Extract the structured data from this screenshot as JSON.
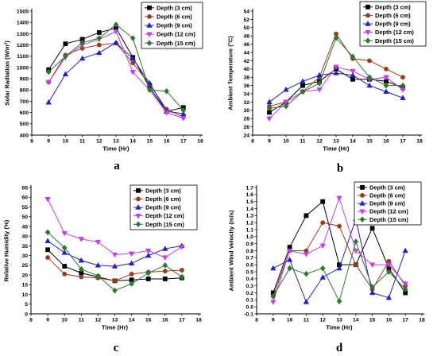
{
  "chart_data": [
    {
      "panel_label": "a",
      "type": "line",
      "xlabel": "Time (Hr)",
      "ylabel": "Solar Radiation (W/m²)",
      "xlim": [
        8,
        18
      ],
      "ylim": [
        400,
        1500
      ],
      "xticks": [
        "8",
        "9",
        "10",
        "11",
        "12",
        "13",
        "14",
        "15",
        "16",
        "17",
        "18"
      ],
      "yticks": [
        "400",
        "500",
        "600",
        "700",
        "800",
        "900",
        "1000",
        "1100",
        "1200",
        "1300",
        "1400",
        "1500"
      ],
      "grid": false,
      "legend": "top-right",
      "x": [
        9,
        10,
        11,
        12,
        13,
        14,
        15,
        16,
        17
      ],
      "series": [
        {
          "name": "Depth (3 cm)",
          "color": "#000000",
          "marker": "square",
          "values": [
            980,
            1210,
            1250,
            1310,
            1350,
            1090,
            820,
            610,
            645
          ]
        },
        {
          "name": "Depth (6 cm)",
          "color": "#9b3b1e",
          "marker": "circle",
          "values": [
            870,
            1110,
            1170,
            1200,
            1215,
            1040,
            850,
            630,
            560
          ]
        },
        {
          "name": "Depth (9 cm)",
          "color": "#1f1fcc",
          "marker": "triangle-up",
          "values": [
            690,
            940,
            1080,
            1130,
            1220,
            1080,
            860,
            610,
            590
          ]
        },
        {
          "name": "Depth (12 cm)",
          "color": "#c23cf2",
          "marker": "triangle-down",
          "values": [
            870,
            1090,
            1200,
            1250,
            1320,
            960,
            800,
            600,
            550
          ]
        },
        {
          "name": "Depth (15 cm)",
          "color": "#2b7a2b",
          "marker": "diamond",
          "values": [
            960,
            1100,
            1220,
            1260,
            1380,
            1260,
            800,
            790,
            620
          ]
        }
      ]
    },
    {
      "panel_label": "b",
      "type": "line",
      "xlabel": "Time (Hr)",
      "ylabel": "Ambient Temperature (°C)",
      "xlim": [
        8,
        18
      ],
      "ylim": [
        24,
        54
      ],
      "xticks": [
        "8",
        "9",
        "10",
        "11",
        "12",
        "13",
        "14",
        "15",
        "16",
        "17",
        "18"
      ],
      "yticks": [
        "24",
        "26",
        "28",
        "30",
        "32",
        "34",
        "36",
        "38",
        "40",
        "42",
        "44",
        "46",
        "48",
        "50",
        "52",
        "54"
      ],
      "grid": false,
      "legend": "top-right",
      "x": [
        9,
        10,
        11,
        12,
        13,
        14,
        15,
        16,
        17
      ],
      "series": [
        {
          "name": "Depth (3 cm)",
          "color": "#000000",
          "marker": "square",
          "values": [
            29.5,
            32,
            36,
            37,
            40,
            37.5,
            37.5,
            37,
            35.5
          ]
        },
        {
          "name": "Depth (6 cm)",
          "color": "#9b3b1e",
          "marker": "circle",
          "values": [
            31,
            32,
            34.5,
            38,
            48.5,
            42.5,
            42,
            40,
            38
          ]
        },
        {
          "name": "Depth (9 cm)",
          "color": "#1f1fcc",
          "marker": "triangle-up",
          "values": [
            32,
            35,
            37,
            38.5,
            39,
            38.5,
            36,
            34.5,
            33
          ]
        },
        {
          "name": "Depth (12 cm)",
          "color": "#c23cf2",
          "marker": "triangle-down",
          "values": [
            28,
            32,
            34.5,
            35,
            40.5,
            39.5,
            37.5,
            38,
            35
          ]
        },
        {
          "name": "Depth (15 cm)",
          "color": "#2b7a2b",
          "marker": "diamond",
          "values": [
            30.5,
            31,
            34.5,
            36.5,
            47.5,
            43,
            38,
            36,
            36
          ]
        }
      ]
    },
    {
      "panel_label": "c",
      "type": "line",
      "xlabel": "Time (Hr)",
      "ylabel": "Relative Humidity (%)",
      "xlim": [
        8,
        18
      ],
      "ylim": [
        0,
        65
      ],
      "xticks": [
        "8",
        "9",
        "10",
        "11",
        "12",
        "13",
        "14",
        "15",
        "16",
        "17",
        "18"
      ],
      "yticks": [
        "0",
        "5",
        "10",
        "15",
        "20",
        "25",
        "30",
        "35",
        "40",
        "45",
        "50",
        "55",
        "60",
        "65"
      ],
      "grid": false,
      "legend": "top-right",
      "x": [
        9,
        10,
        11,
        12,
        13,
        14,
        15,
        16,
        17
      ],
      "series": [
        {
          "name": "Depth (3 cm)",
          "color": "#000000",
          "marker": "square",
          "values": [
            33,
            24.5,
            21,
            19,
            17,
            17.5,
            18,
            18,
            18.5
          ]
        },
        {
          "name": "Depth (6 cm)",
          "color": "#9b3b1e",
          "marker": "circle",
          "values": [
            29,
            20.5,
            19,
            18.5,
            17,
            20.5,
            21.5,
            22,
            22.5
          ]
        },
        {
          "name": "Depth (9 cm)",
          "color": "#1f1fcc",
          "marker": "triangle-up",
          "values": [
            37.5,
            31.5,
            27.5,
            25,
            24.5,
            26,
            30,
            33.5,
            35
          ]
        },
        {
          "name": "Depth (12 cm)",
          "color": "#c23cf2",
          "marker": "triangle-down",
          "values": [
            59,
            41.5,
            38.5,
            37,
            30.5,
            31,
            32.5,
            29,
            34.5
          ]
        },
        {
          "name": "Depth (15 cm)",
          "color": "#2b7a2b",
          "marker": "diamond",
          "values": [
            42,
            34,
            23,
            19.5,
            12,
            15.5,
            21,
            25,
            19
          ]
        }
      ]
    },
    {
      "panel_label": "d",
      "type": "line",
      "xlabel": "Time (Hr)",
      "ylabel": "Ambient Wind Velocity (m/s)",
      "xlim": [
        8,
        18
      ],
      "ylim": [
        -0.1,
        1.7
      ],
      "xticks": [
        "8",
        "9",
        "10",
        "11",
        "12",
        "13",
        "14",
        "15",
        "16",
        "17",
        "18"
      ],
      "yticks": [
        "-0.1",
        "0.0",
        "0.1",
        "0.2",
        "0.3",
        "0.4",
        "0.5",
        "0.6",
        "0.7",
        "0.8",
        "0.9",
        "1.0",
        "1.1",
        "1.2",
        "1.3",
        "1.4",
        "1.5",
        "1.6",
        "1.7"
      ],
      "grid": false,
      "legend": "top-right",
      "x": [
        9,
        10,
        11,
        12,
        13,
        14,
        15,
        16,
        17
      ],
      "series": [
        {
          "name": "Depth (3 cm)",
          "color": "#000000",
          "marker": "square",
          "values": [
            0.2,
            0.85,
            1.3,
            1.5,
            0.6,
            0.6,
            1.12,
            0.55,
            0.2
          ]
        },
        {
          "name": "Depth (6 cm)",
          "color": "#9b3b1e",
          "marker": "circle",
          "values": [
            0.15,
            0.8,
            0.8,
            1.2,
            1.15,
            0.6,
            0.25,
            0.65,
            0.3
          ]
        },
        {
          "name": "Depth (9 cm)",
          "color": "#1f1fcc",
          "marker": "triangle-up",
          "values": [
            0.55,
            0.67,
            0.07,
            0.42,
            0.55,
            1.25,
            0.2,
            0.13,
            0.8
          ]
        },
        {
          "name": "Depth (12 cm)",
          "color": "#c23cf2",
          "marker": "triangle-down",
          "values": [
            0.07,
            0.8,
            0.75,
            0.87,
            1.55,
            0.8,
            0.6,
            0.6,
            0.33
          ]
        },
        {
          "name": "Depth (15 cm)",
          "color": "#2b7a2b",
          "marker": "diamond",
          "values": [
            0.15,
            0.55,
            0.47,
            0.55,
            0.08,
            0.93,
            0.28,
            0.5,
            0.25
          ]
        }
      ]
    }
  ]
}
